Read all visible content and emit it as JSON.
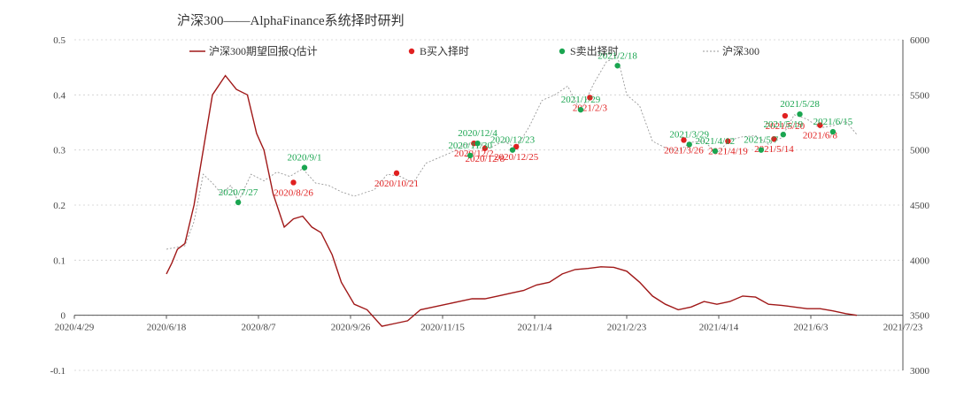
{
  "chart_data": {
    "type": "line",
    "title": "沪深300——AlphaFinance系统择时研判",
    "x_ticks": [
      "2020/4/29",
      "2020/6/18",
      "2020/8/7",
      "2020/9/26",
      "2020/11/15",
      "2021/1/4",
      "2021/2/23",
      "2021/4/14",
      "2021/6/3",
      "2021/7/23"
    ],
    "xlim": [
      "2020/4/29",
      "2021/7/23"
    ],
    "y_left": {
      "ylim": [
        -0.1,
        0.5
      ],
      "ticks": [
        "-0.1",
        "0",
        "0.1",
        "0.2",
        "0.3",
        "0.4",
        "0.5"
      ]
    },
    "y_right": {
      "ylim": [
        3000,
        6000
      ],
      "ticks": [
        "3000",
        "3500",
        "4000",
        "4500",
        "5000",
        "5500",
        "6000"
      ]
    },
    "grid": "horizontal dashed",
    "legend": {
      "position": "top",
      "items": [
        {
          "label": "沪深300期望回报Q估计",
          "kind": "line",
          "color": "#a01818"
        },
        {
          "label": "B买入择时",
          "kind": "dot",
          "color": "#e02020"
        },
        {
          "label": "S卖出择时",
          "kind": "dot",
          "color": "#1aa550"
        },
        {
          "label": "沪深300",
          "kind": "dash",
          "color": "#999999"
        }
      ]
    },
    "series": [
      {
        "name": "沪深300期望回报Q估计",
        "axis": "left",
        "color": "#a01818",
        "points": [
          [
            "2020/6/18",
            0.075
          ],
          [
            "2020/6/21",
            0.095
          ],
          [
            "2020/6/24",
            0.12
          ],
          [
            "2020/6/28",
            0.13
          ],
          [
            "2020/7/3",
            0.2
          ],
          [
            "2020/7/8",
            0.3
          ],
          [
            "2020/7/13",
            0.4
          ],
          [
            "2020/7/20",
            0.435
          ],
          [
            "2020/7/26",
            0.41
          ],
          [
            "2020/8/1",
            0.4
          ],
          [
            "2020/8/6",
            0.33
          ],
          [
            "2020/8/10",
            0.3
          ],
          [
            "2020/8/15",
            0.22
          ],
          [
            "2020/8/21",
            0.16
          ],
          [
            "2020/8/26",
            0.175
          ],
          [
            "2020/8/31",
            0.18
          ],
          [
            "2020/9/5",
            0.16
          ],
          [
            "2020/9/10",
            0.15
          ],
          [
            "2020/9/16",
            0.11
          ],
          [
            "2020/9/21",
            0.06
          ],
          [
            "2020/9/28",
            0.02
          ],
          [
            "2020/10/5",
            0.01
          ],
          [
            "2020/10/13",
            -0.02
          ],
          [
            "2020/10/20",
            -0.015
          ],
          [
            "2020/10/27",
            -0.01
          ],
          [
            "2020/11/3",
            0.01
          ],
          [
            "2020/11/10",
            0.015
          ],
          [
            "2020/11/17",
            0.02
          ],
          [
            "2020/11/24",
            0.025
          ],
          [
            "2020/12/1",
            0.03
          ],
          [
            "2020/12/8",
            0.03
          ],
          [
            "2020/12/15",
            0.035
          ],
          [
            "2020/12/22",
            0.04
          ],
          [
            "2020/12/29",
            0.045
          ],
          [
            "2021/1/5",
            0.055
          ],
          [
            "2021/1/12",
            0.06
          ],
          [
            "2021/1/19",
            0.075
          ],
          [
            "2021/1/26",
            0.083
          ],
          [
            "2021/2/2",
            0.085
          ],
          [
            "2021/2/9",
            0.088
          ],
          [
            "2021/2/16",
            0.087
          ],
          [
            "2021/2/23",
            0.08
          ],
          [
            "2021/3/2",
            0.06
          ],
          [
            "2021/3/9",
            0.035
          ],
          [
            "2021/3/16",
            0.02
          ],
          [
            "2021/3/23",
            0.01
          ],
          [
            "2021/3/30",
            0.015
          ],
          [
            "2021/4/6",
            0.025
          ],
          [
            "2021/4/13",
            0.02
          ],
          [
            "2021/4/20",
            0.025
          ],
          [
            "2021/4/27",
            0.035
          ],
          [
            "2021/5/4",
            0.033
          ],
          [
            "2021/5/11",
            0.02
          ],
          [
            "2021/5/18",
            0.018
          ],
          [
            "2021/5/25",
            0.015
          ],
          [
            "2021/6/1",
            0.012
          ],
          [
            "2021/6/8",
            0.012
          ],
          [
            "2021/6/15",
            0.008
          ],
          [
            "2021/6/22",
            0.003
          ],
          [
            "2021/6/28",
            0.0
          ]
        ]
      },
      {
        "name": "沪深300",
        "axis": "right",
        "color": "#999999",
        "points": [
          [
            "2020/6/18",
            4100
          ],
          [
            "2020/6/28",
            4130
          ],
          [
            "2020/7/3",
            4350
          ],
          [
            "2020/7/8",
            4780
          ],
          [
            "2020/7/13",
            4700
          ],
          [
            "2020/7/18",
            4600
          ],
          [
            "2020/7/23",
            4680
          ],
          [
            "2020/7/27",
            4530
          ],
          [
            "2020/8/3",
            4780
          ],
          [
            "2020/8/10",
            4720
          ],
          [
            "2020/8/17",
            4800
          ],
          [
            "2020/8/24",
            4760
          ],
          [
            "2020/8/31",
            4830
          ],
          [
            "2020/9/7",
            4700
          ],
          [
            "2020/9/14",
            4680
          ],
          [
            "2020/9/21",
            4620
          ],
          [
            "2020/9/28",
            4580
          ],
          [
            "2020/10/9",
            4640
          ],
          [
            "2020/10/16",
            4780
          ],
          [
            "2020/10/23",
            4760
          ],
          [
            "2020/10/30",
            4700
          ],
          [
            "2020/11/6",
            4880
          ],
          [
            "2020/11/13",
            4930
          ],
          [
            "2020/11/20",
            4980
          ],
          [
            "2020/11/27",
            5050
          ],
          [
            "2020/12/4",
            5060
          ],
          [
            "2020/12/11",
            5020
          ],
          [
            "2020/12/18",
            5080
          ],
          [
            "2020/12/25",
            5020
          ],
          [
            "2021/1/1",
            5210
          ],
          [
            "2021/1/8",
            5450
          ],
          [
            "2021/1/15",
            5500
          ],
          [
            "2021/1/22",
            5580
          ],
          [
            "2021/1/29",
            5350
          ],
          [
            "2021/2/5",
            5600
          ],
          [
            "2021/2/12",
            5800
          ],
          [
            "2021/2/18",
            5850
          ],
          [
            "2021/2/23",
            5500
          ],
          [
            "2021/3/2",
            5400
          ],
          [
            "2021/3/9",
            5080
          ],
          [
            "2021/3/16",
            5020
          ],
          [
            "2021/3/23",
            4990
          ],
          [
            "2021/3/30",
            5070
          ],
          [
            "2021/4/6",
            5080
          ],
          [
            "2021/4/13",
            4970
          ],
          [
            "2021/4/20",
            5090
          ],
          [
            "2021/4/27",
            5120
          ],
          [
            "2021/5/4",
            5130
          ],
          [
            "2021/5/11",
            5050
          ],
          [
            "2021/5/18",
            5110
          ],
          [
            "2021/5/25",
            5320
          ],
          [
            "2021/6/1",
            5280
          ],
          [
            "2021/6/8",
            5200
          ],
          [
            "2021/6/15",
            5220
          ],
          [
            "2021/6/22",
            5260
          ],
          [
            "2021/6/28",
            5140
          ]
        ]
      }
    ],
    "buy_signals": [
      {
        "date": "2020/8/26",
        "label": "2020/8/26",
        "value": 0.241
      },
      {
        "date": "2020/10/21",
        "label": "2020/10/21",
        "value": 0.258
      },
      {
        "date": "2020/12/2",
        "label": "2020/12/2",
        "value": 0.312
      },
      {
        "date": "2020/12/8",
        "label": "2020/12/8",
        "value": 0.303
      },
      {
        "date": "2020/12/25",
        "label": "2020/12/25",
        "value": 0.306
      },
      {
        "date": "2021/2/3",
        "label": "2021/2/3",
        "value": 0.395
      },
      {
        "date": "2021/3/26",
        "label": "2021/3/26",
        "value": 0.318
      },
      {
        "date": "2021/4/19",
        "label": "2021/4/19",
        "value": 0.316
      },
      {
        "date": "2021/5/20",
        "label": "2021/5/20",
        "value": 0.362
      },
      {
        "date": "2021/5/14",
        "label": "2021/5/14",
        "value": 0.32
      },
      {
        "date": "2021/6/8",
        "label": "2021/6/8",
        "value": 0.345
      }
    ],
    "sell_signals": [
      {
        "date": "2020/7/27",
        "label": "2020/7/27",
        "value": 0.205
      },
      {
        "date": "2020/9/1",
        "label": "2020/9/1",
        "value": 0.268
      },
      {
        "date": "2020/12/4",
        "label": "2020/12/4",
        "value": 0.312
      },
      {
        "date": "2020/11/30",
        "label": "2020/11/30",
        "value": 0.29
      },
      {
        "date": "2020/12/23",
        "label": "2020/12/23",
        "value": 0.3
      },
      {
        "date": "2021/1/29",
        "label": "2021/1/29",
        "value": 0.373
      },
      {
        "date": "2021/2/18",
        "label": "2021/2/18",
        "value": 0.453
      },
      {
        "date": "2021/3/29",
        "label": "2021/3/29",
        "value": 0.31
      },
      {
        "date": "2021/4/12",
        "label": "2021/4/12",
        "value": 0.298
      },
      {
        "date": "2021/5/7",
        "label": "2021/5/7",
        "value": 0.3
      },
      {
        "date": "2021/5/19",
        "label": "2021/5/19",
        "value": 0.328
      },
      {
        "date": "2021/5/28",
        "label": "2021/5/28",
        "value": 0.365
      },
      {
        "date": "2021/6/15",
        "label": "2021/6/15",
        "value": 0.333
      }
    ],
    "colors": {
      "q_line": "#a01818",
      "buy": "#e02020",
      "sell": "#1aa550",
      "index": "#999999",
      "axis": "#444444",
      "grid": "#cfcfcf"
    }
  }
}
